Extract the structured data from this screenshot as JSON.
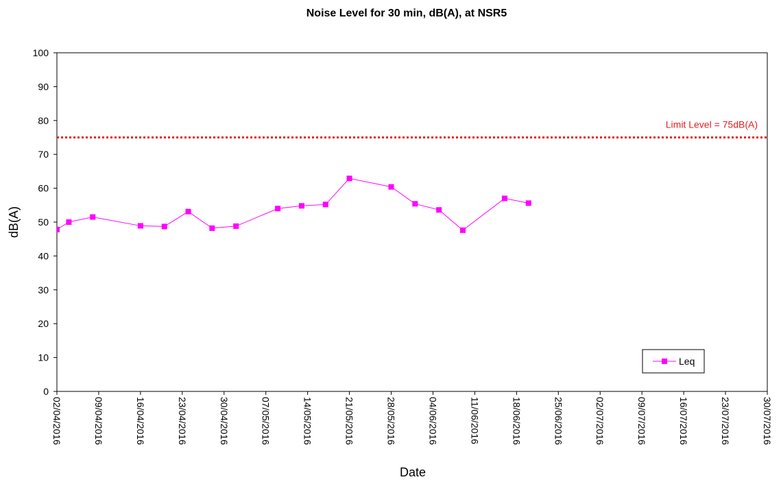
{
  "chart_data": {
    "type": "line",
    "title": "Noise Level for 30 min, dB(A), at NSR5",
    "xlabel": "Date",
    "ylabel": "dB(A)",
    "ylim": [
      0,
      100
    ],
    "y_ticks": [
      0,
      10,
      20,
      30,
      40,
      50,
      60,
      70,
      80,
      90,
      100
    ],
    "x_tick_labels": [
      "02/04/2016",
      "09/04/2016",
      "16/04/2016",
      "23/04/2016",
      "30/04/2016",
      "07/05/2016",
      "14/05/2016",
      "21/05/2016",
      "28/05/2016",
      "04/06/2016",
      "11/06/2016",
      "18/06/2016",
      "25/06/2016",
      "02/07/2016",
      "09/07/2016",
      "16/07/2016",
      "23/07/2016",
      "30/07/2016"
    ],
    "grid": false,
    "legend": {
      "position": "bottom-right"
    },
    "series": [
      {
        "name": "Leq",
        "color": "#ff00ff",
        "marker": "square",
        "points": [
          {
            "x": "02/04/2016",
            "y": 47.8
          },
          {
            "x": "04/04/2016",
            "y": 50.0
          },
          {
            "x": "08/04/2016",
            "y": 51.5
          },
          {
            "x": "16/04/2016",
            "y": 48.9
          },
          {
            "x": "20/04/2016",
            "y": 48.7
          },
          {
            "x": "24/04/2016",
            "y": 53.1
          },
          {
            "x": "28/04/2016",
            "y": 48.2
          },
          {
            "x": "02/05/2016",
            "y": 48.8
          },
          {
            "x": "09/05/2016",
            "y": 54.0
          },
          {
            "x": "13/05/2016",
            "y": 54.8
          },
          {
            "x": "17/05/2016",
            "y": 55.2
          },
          {
            "x": "21/05/2016",
            "y": 62.9
          },
          {
            "x": "28/05/2016",
            "y": 60.4
          },
          {
            "x": "01/06/2016",
            "y": 55.4
          },
          {
            "x": "05/06/2016",
            "y": 53.6
          },
          {
            "x": "09/06/2016",
            "y": 47.6
          },
          {
            "x": "16/06/2016",
            "y": 57.0
          },
          {
            "x": "20/06/2016",
            "y": 55.6
          }
        ]
      }
    ],
    "limit_line": {
      "value": 75,
      "label": "Limit Level = 75dB(A)",
      "color": "#e41e1e",
      "style": "dotted"
    }
  }
}
